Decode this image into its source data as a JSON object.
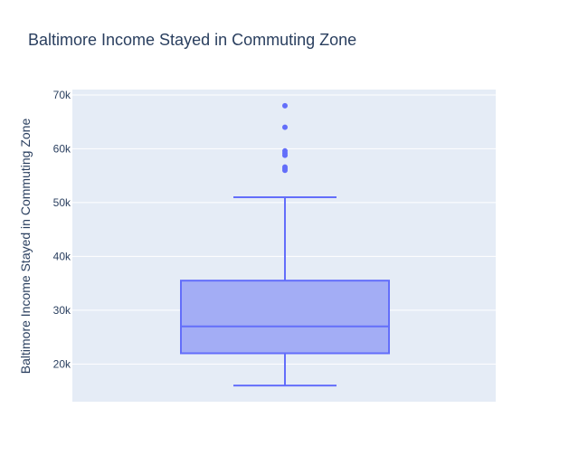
{
  "chart_data": {
    "type": "box",
    "title": "Baltimore Income Stayed in Commuting Zone",
    "xlabel": "",
    "ylabel": "Baltimore Income Stayed in Commuting Zone",
    "ylim": [
      13000,
      71000
    ],
    "yticks": [
      20000,
      30000,
      40000,
      50000,
      60000,
      70000
    ],
    "ytick_labels": [
      "20k",
      "30k",
      "40k",
      "50k",
      "60k",
      "70k"
    ],
    "grid": true,
    "box": {
      "lower_fence": 16000,
      "q1": 22000,
      "median": 27000,
      "q3": 35500,
      "upper_fence": 51000,
      "outliers": [
        56000,
        56300,
        56600,
        58800,
        59200,
        59600,
        64000,
        68000
      ]
    },
    "colors": {
      "box_fill": "#a3adf5",
      "box_line": "#636efa",
      "plot_bg": "#e5ecf6",
      "grid": "#ffffff",
      "text": "#2a3f5f"
    }
  }
}
